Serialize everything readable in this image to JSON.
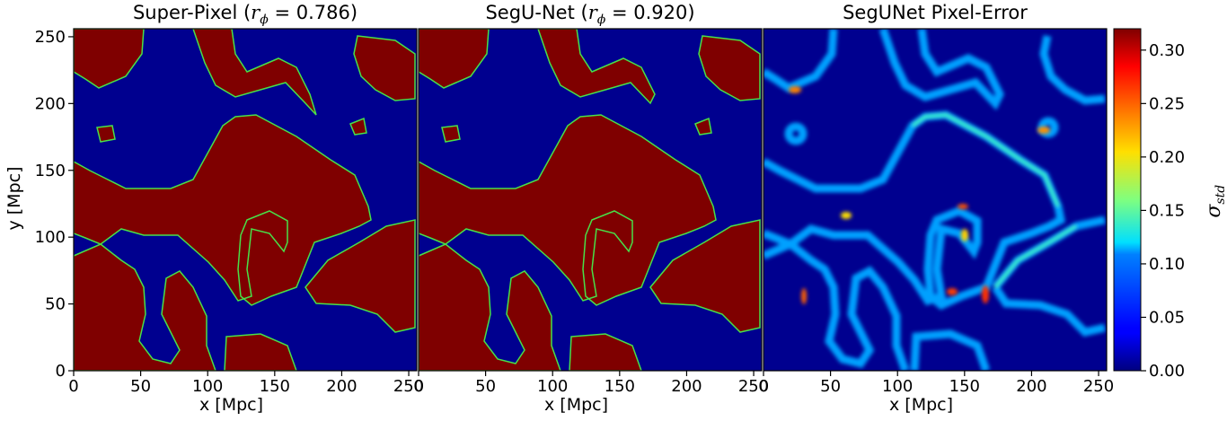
{
  "chart_data": [
    {
      "type": "heatmap",
      "title_text": "Super-Pixel (",
      "title_math_symbol": "r",
      "title_math_sub": "ϕ",
      "title_value": " = 0.786)",
      "xlabel": "x [Mpc]",
      "ylabel": "y [Mpc]",
      "xlim": [
        0,
        256
      ],
      "ylim": [
        0,
        256
      ],
      "xticks": [
        "0",
        "50",
        "100",
        "150",
        "200",
        "250"
      ],
      "yticks": [
        "0",
        "50",
        "100",
        "150",
        "200",
        "250"
      ],
      "colors": {
        "ionized": "#7f0000",
        "neutral": "#00008f",
        "contour": "#48e048"
      },
      "grid": false
    },
    {
      "type": "heatmap",
      "title_text": "SegU-Net (",
      "title_math_symbol": "r",
      "title_math_sub": "ϕ",
      "title_value": " = 0.920)",
      "xlabel": "x [Mpc]",
      "xlim": [
        0,
        256
      ],
      "ylim": [
        0,
        256
      ],
      "xticks": [
        "0",
        "50",
        "100",
        "150",
        "200",
        "250"
      ],
      "colors": {
        "ionized": "#7f0000",
        "neutral": "#00008f",
        "contour": "#48e048"
      },
      "grid": false
    },
    {
      "type": "heatmap",
      "title_text": "SegUNet Pixel-Error",
      "xlabel": "x [Mpc]",
      "xlim": [
        0,
        256
      ],
      "ylim": [
        0,
        256
      ],
      "xticks": [
        "0",
        "50",
        "100",
        "150",
        "200",
        "250"
      ],
      "colormap": "jet",
      "colorbar": {
        "label_symbol": "σ",
        "label_sub": "std",
        "range": [
          0,
          0.32
        ],
        "ticks": [
          "0.00",
          "0.05",
          "0.10",
          "0.15",
          "0.20",
          "0.25",
          "0.30"
        ],
        "tick_values": [
          0.0,
          0.05,
          0.1,
          0.15,
          0.2,
          0.25,
          0.3
        ]
      },
      "grid": false
    }
  ]
}
